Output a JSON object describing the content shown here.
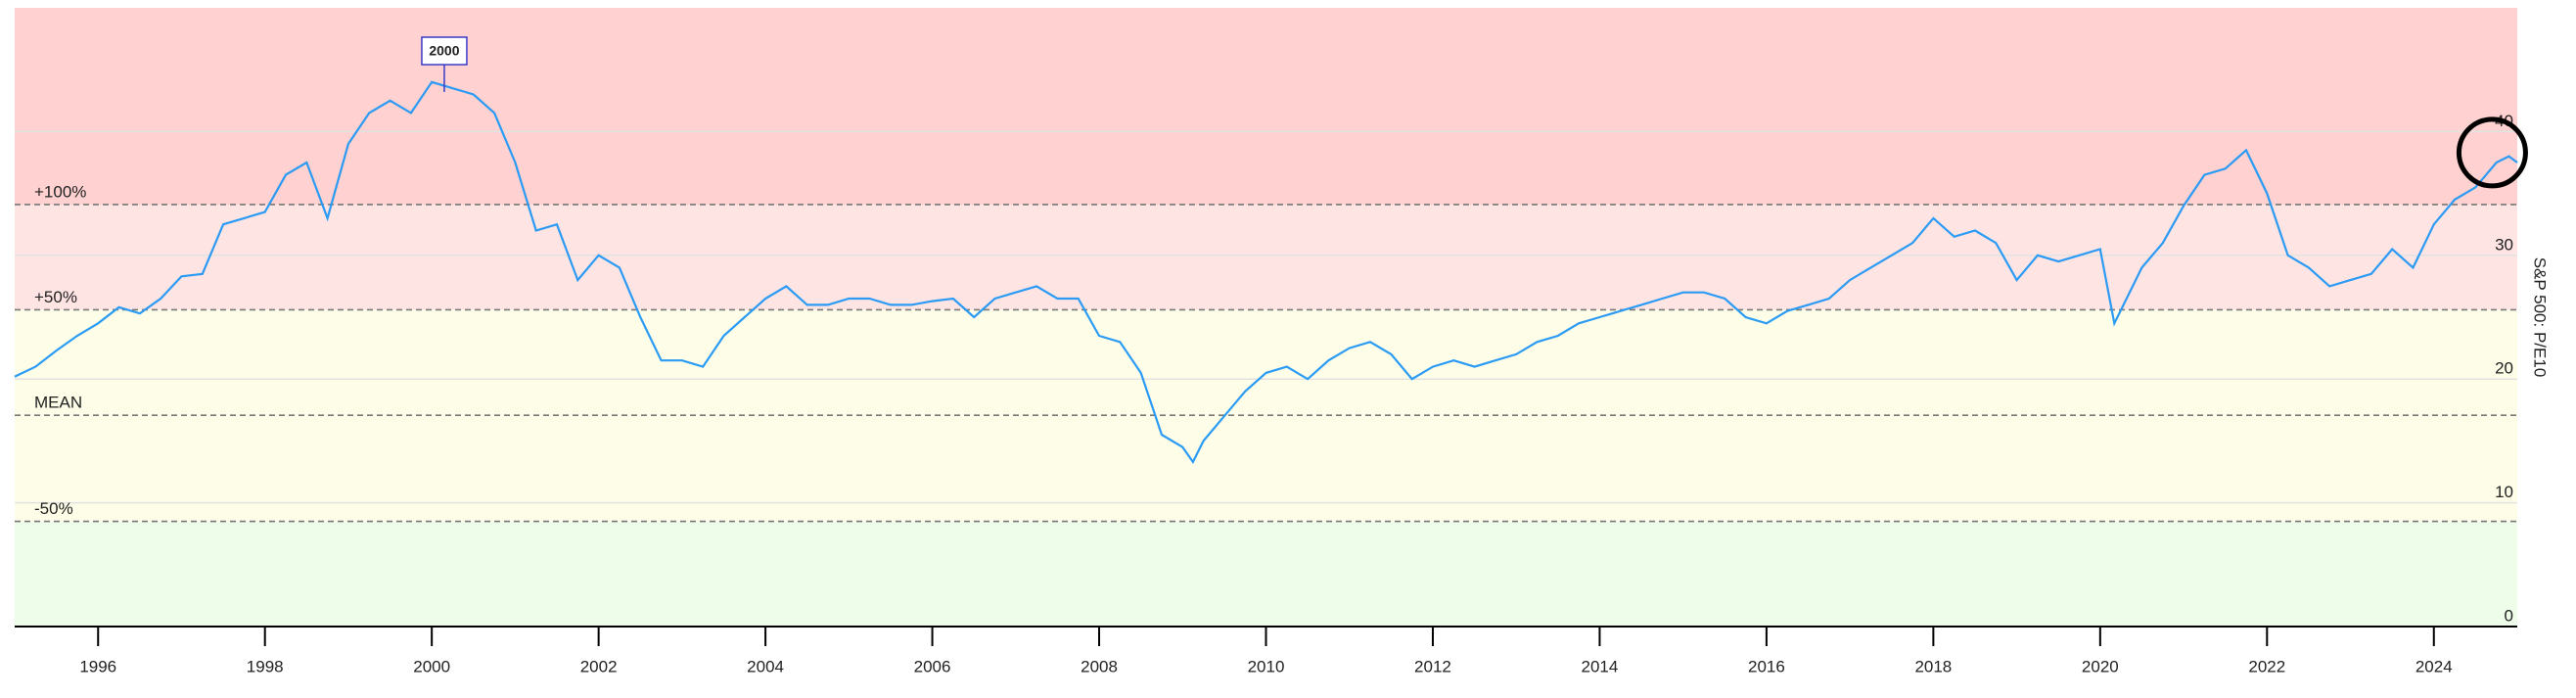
{
  "chart_data": {
    "type": "line",
    "y_label": "S&P 500: P/E10",
    "color": "#2b9bf4",
    "x": [
      1995.0,
      1995.25,
      1995.5,
      1995.75,
      1996.0,
      1996.25,
      1996.5,
      1996.75,
      1997.0,
      1997.25,
      1997.5,
      1997.75,
      1998.0,
      1998.25,
      1998.5,
      1998.75,
      1999.0,
      1999.25,
      1999.5,
      1999.75,
      2000.0,
      2000.25,
      2000.5,
      2000.75,
      2001.0,
      2001.25,
      2001.5,
      2001.75,
      2002.0,
      2002.25,
      2002.5,
      2002.75,
      2003.0,
      2003.25,
      2003.5,
      2003.75,
      2004.0,
      2004.25,
      2004.5,
      2004.75,
      2005.0,
      2005.25,
      2005.5,
      2005.75,
      2006.0,
      2006.25,
      2006.5,
      2006.75,
      2007.0,
      2007.25,
      2007.5,
      2007.75,
      2008.0,
      2008.25,
      2008.5,
      2008.75,
      2009.0,
      2009.125,
      2009.25,
      2009.5,
      2009.75,
      2010.0,
      2010.25,
      2010.5,
      2010.75,
      2011.0,
      2011.25,
      2011.5,
      2011.75,
      2012.0,
      2012.25,
      2012.5,
      2012.75,
      2013.0,
      2013.25,
      2013.5,
      2013.75,
      2014.0,
      2014.25,
      2014.5,
      2014.75,
      2015.0,
      2015.25,
      2015.5,
      2015.75,
      2016.0,
      2016.25,
      2016.5,
      2016.75,
      2017.0,
      2017.25,
      2017.5,
      2017.75,
      2018.0,
      2018.25,
      2018.5,
      2018.75,
      2019.0,
      2019.25,
      2019.5,
      2019.75,
      2020.0,
      2020.17,
      2020.5,
      2020.75,
      2021.0,
      2021.25,
      2021.5,
      2021.75,
      2022.0,
      2022.25,
      2022.5,
      2022.75,
      2023.0,
      2023.25,
      2023.5,
      2023.75,
      2024.0,
      2024.25,
      2024.5,
      2024.75,
      2024.9,
      2025.0
    ],
    "values": [
      20.2,
      21,
      22.3,
      23.5,
      24.5,
      25.8,
      25.3,
      26.5,
      28.3,
      28.5,
      32.5,
      33,
      33.5,
      36.5,
      37.5,
      33,
      39,
      41.5,
      42.5,
      41.5,
      44,
      43.5,
      43,
      41.5,
      37.5,
      32,
      32.5,
      28,
      30,
      29,
      25,
      21.5,
      21.5,
      21,
      23.5,
      25,
      26.5,
      27.5,
      26,
      26,
      26.5,
      26.5,
      26,
      26,
      26.3,
      26.5,
      25,
      26.5,
      27,
      27.5,
      26.5,
      26.5,
      23.5,
      23,
      20.5,
      15.5,
      14.5,
      13.3,
      15,
      17,
      19,
      20.5,
      21,
      20,
      21.5,
      22.5,
      23,
      22,
      20,
      21,
      21.5,
      21,
      21.5,
      22,
      23,
      23.5,
      24.5,
      25,
      25.5,
      26,
      26.5,
      27,
      27,
      26.5,
      25,
      24.5,
      25.5,
      26,
      26.5,
      28,
      29,
      30,
      31,
      33,
      31.5,
      32,
      31,
      28,
      30,
      29.5,
      30,
      30.5,
      24.5,
      29,
      31,
      34,
      36.5,
      37,
      38.5,
      35,
      30,
      29,
      27.5,
      28,
      28.5,
      30.5,
      29,
      32.5,
      34.5,
      35.5,
      37.5,
      38,
      37.5
    ],
    "xlim": [
      1995,
      2025
    ],
    "xticks": [
      1996,
      1998,
      2000,
      2002,
      2004,
      2006,
      2008,
      2010,
      2012,
      2014,
      2016,
      2018,
      2020,
      2022,
      2024
    ],
    "ylim": [
      0,
      50
    ],
    "yticks": [
      0,
      10,
      20,
      30,
      40
    ],
    "grid": true,
    "reference_lines": [
      {
        "label": "-50%",
        "value": 8.5
      },
      {
        "label": "MEAN",
        "value": 17.07
      },
      {
        "label": "+50%",
        "value": 25.6
      },
      {
        "label": "+100%",
        "value": 34.1
      }
    ],
    "band_colors": [
      "#edfdea",
      "#fefee8",
      "#fefee8",
      "#ffe4e4",
      "#ffd1d1"
    ],
    "annotations": [
      {
        "label": "2000",
        "x": 2000.15,
        "y": 43.2
      }
    ],
    "highlight": {
      "x": 2024.7,
      "y": 38.3
    }
  }
}
